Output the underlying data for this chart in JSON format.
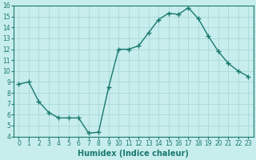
{
  "x": [
    0,
    1,
    2,
    3,
    4,
    5,
    6,
    7,
    8,
    9,
    10,
    11,
    12,
    13,
    14,
    15,
    16,
    17,
    18,
    19,
    20,
    21,
    22,
    23
  ],
  "y": [
    8.8,
    9.0,
    7.2,
    6.2,
    5.7,
    5.7,
    5.7,
    4.3,
    4.4,
    8.5,
    12.0,
    12.0,
    12.3,
    13.5,
    14.7,
    15.3,
    15.2,
    15.8,
    14.8,
    13.2,
    11.8,
    10.7,
    10.0,
    9.5
  ],
  "line_color": "#1a7a6e",
  "marker": "+",
  "marker_size": 4,
  "marker_lw": 1.0,
  "xlabel": "Humidex (Indice chaleur)",
  "xlim": [
    -0.5,
    23.5
  ],
  "ylim": [
    4,
    16
  ],
  "yticks": [
    4,
    5,
    6,
    7,
    8,
    9,
    10,
    11,
    12,
    13,
    14,
    15,
    16
  ],
  "xticks": [
    0,
    1,
    2,
    3,
    4,
    5,
    6,
    7,
    8,
    9,
    10,
    11,
    12,
    13,
    14,
    15,
    16,
    17,
    18,
    19,
    20,
    21,
    22,
    23
  ],
  "bg_color": "#c8eded",
  "grid_color": "#a8d8d8",
  "label_fontsize": 7,
  "tick_fontsize": 5.5,
  "line_width": 1.0,
  "linestyle": "-"
}
